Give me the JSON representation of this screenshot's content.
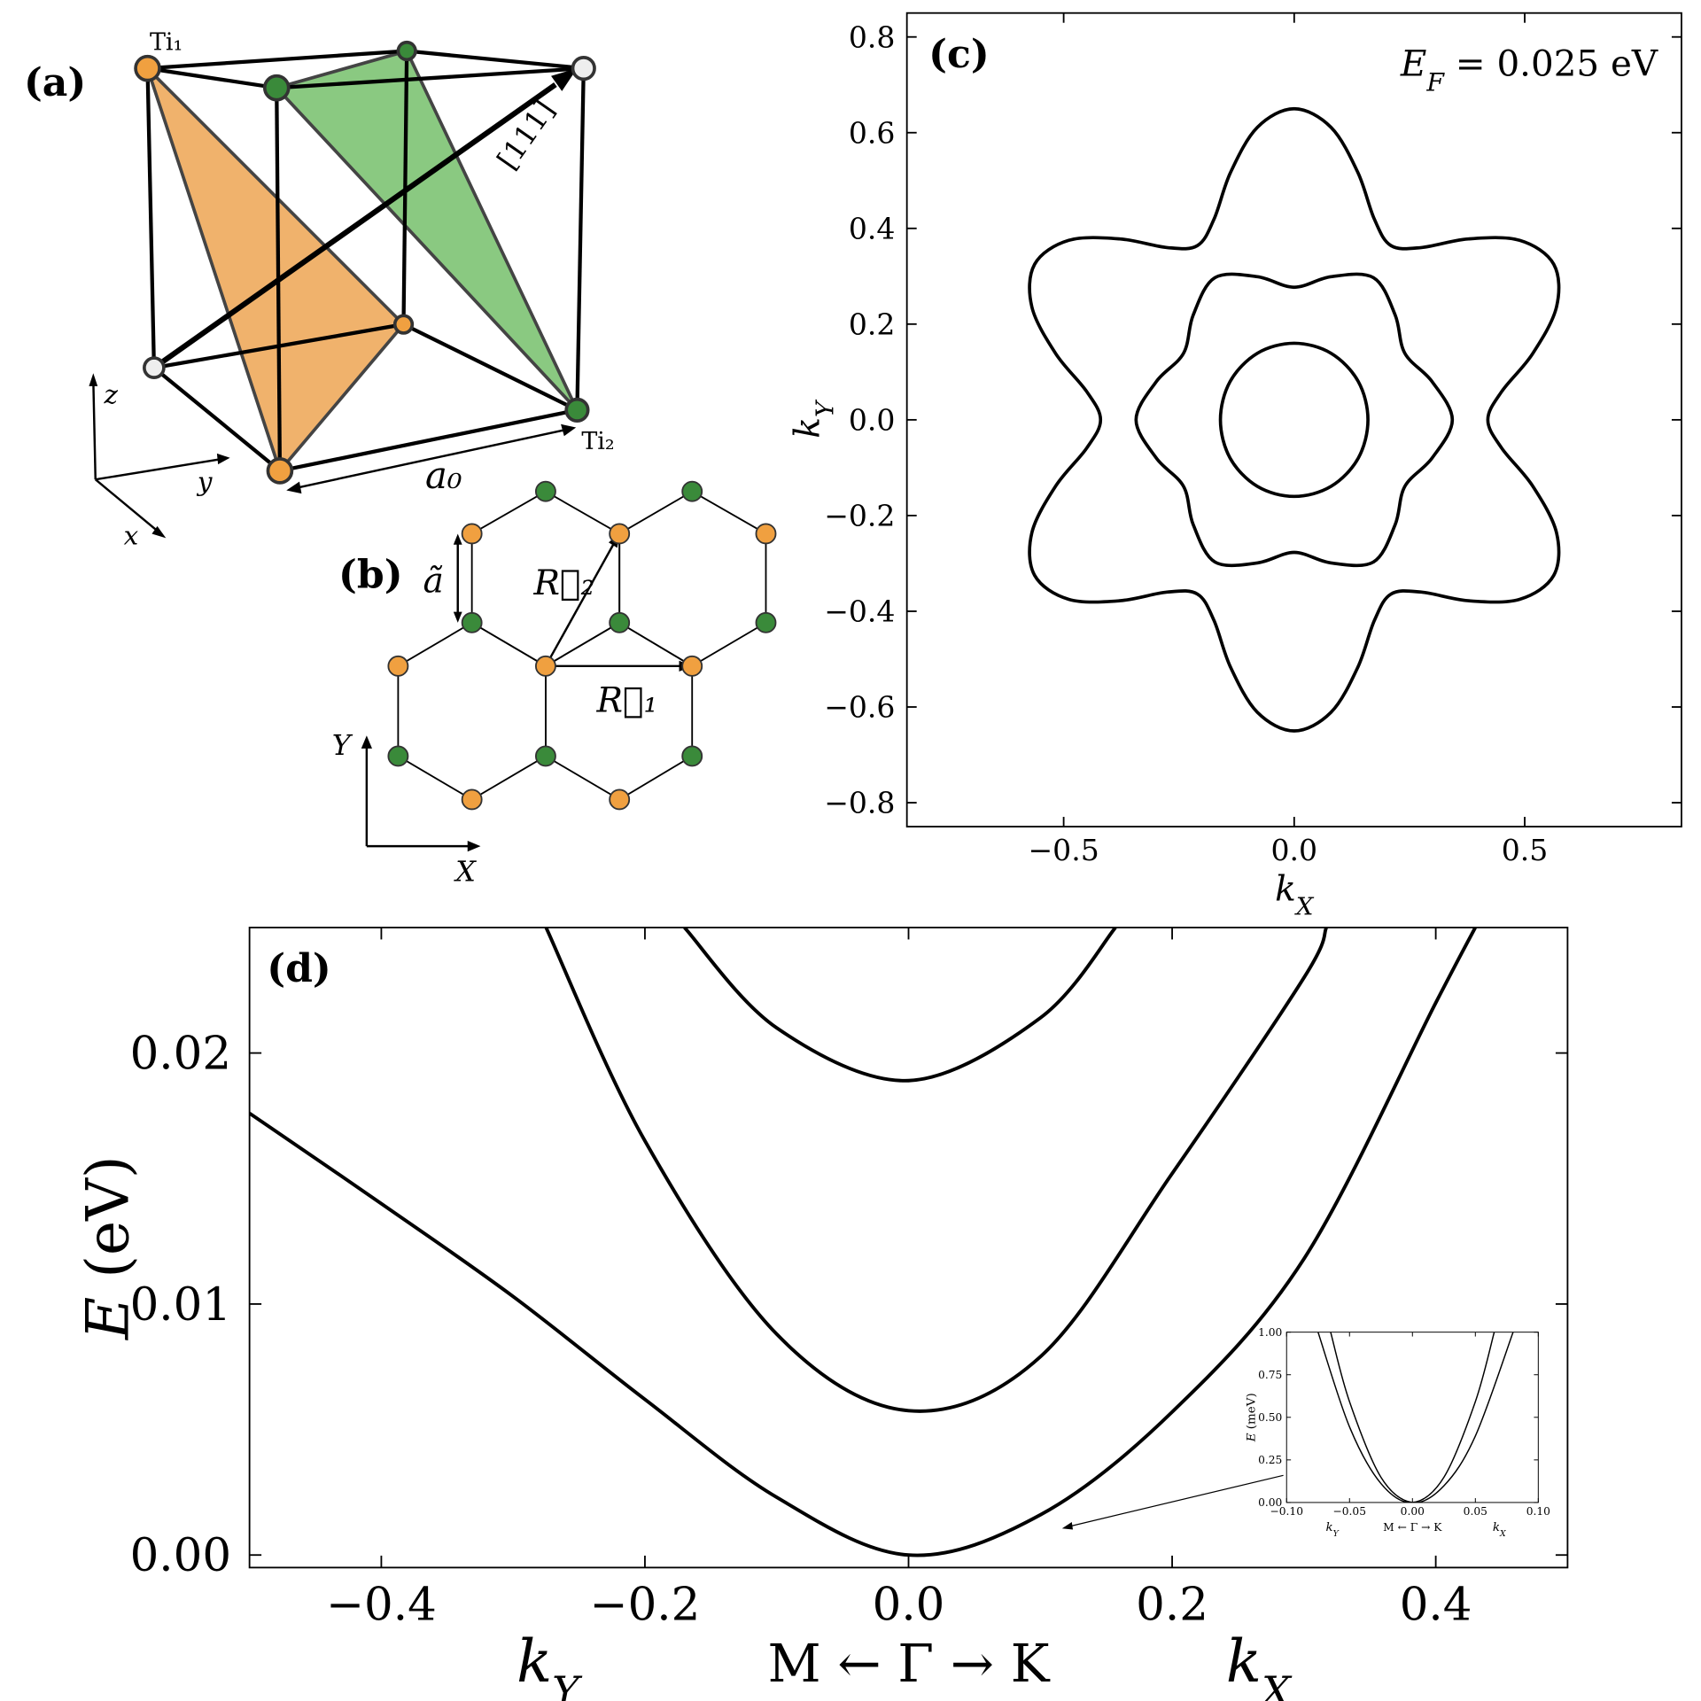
{
  "panels": {
    "a": {
      "label": "(a)",
      "atom_1": "Ti₁",
      "atom_2": "Ti₂",
      "direction": "[111]",
      "lattice_constant": "a₀",
      "axis_x": "x",
      "axis_y": "y",
      "axis_z": "z"
    },
    "b": {
      "label": "(b)",
      "spacing": "ã",
      "vector_1": "R⃗₁",
      "vector_2": "R⃗₂",
      "axis_x": "X",
      "axis_y": "Y"
    }
  },
  "chart_data": [
    {
      "type": "contour",
      "label": "(c)",
      "annotation": [
        "E",
        "F",
        " = 0.025 eV"
      ],
      "xlabel": [
        "k",
        "X"
      ],
      "ylabel": [
        "k",
        "Y"
      ],
      "color": "#000000",
      "xlim": [
        -0.84,
        0.84
      ],
      "ylim": [
        -0.85,
        0.85
      ],
      "xticks": [
        {
          "value": -0.5,
          "label": "−0.5"
        },
        {
          "value": 0,
          "label": "0.0"
        },
        0.5
      ],
      "yticks": [
        {
          "value": -0.8,
          "label": "−0.8"
        },
        {
          "value": -0.6,
          "label": "−0.6"
        },
        {
          "value": -0.4,
          "label": "−0.4"
        },
        {
          "value": -0.2,
          "label": "−0.2"
        },
        {
          "value": 0,
          "label": "0.0"
        },
        0.2,
        0.4,
        0.6,
        0.8
      ],
      "series": [
        {
          "x": [
            0.42,
            0.45,
            0.517,
            0.569,
            0.563,
            0.489,
            0.378,
            0.276,
            0.21,
            0.174,
            0.138,
            0.08,
            0,
            -0.08,
            -0.138,
            -0.174,
            -0.21,
            -0.276,
            -0.378,
            -0.489,
            -0.563,
            -0.569,
            -0.517,
            -0.45,
            -0.42,
            -0.45,
            -0.517,
            -0.569,
            -0.563,
            -0.489,
            -0.378,
            -0.276,
            -0.21,
            -0.174,
            -0.138,
            -0.08,
            0,
            0.08,
            0.138,
            0.174,
            0.21,
            0.276,
            0.378,
            0.489,
            0.563,
            0.569,
            0.517,
            0.45
          ],
          "values": [
            0,
            0.059,
            0.138,
            0.236,
            0.325,
            0.375,
            0.378,
            0.36,
            0.364,
            0.419,
            0.517,
            0.611,
            0.65,
            0.611,
            0.517,
            0.419,
            0.364,
            0.36,
            0.378,
            0.375,
            0.325,
            0.236,
            0.138,
            0.059,
            0,
            -0.059,
            -0.138,
            -0.236,
            -0.325,
            -0.375,
            -0.378,
            -0.36,
            -0.364,
            -0.419,
            -0.517,
            -0.611,
            -0.65,
            -0.611,
            -0.517,
            -0.419,
            -0.364,
            -0.36,
            -0.378,
            -0.375,
            -0.325,
            -0.236,
            -0.138,
            -0.059
          ]
        },
        {
          "x": [
            0.343,
            0.299,
            0.24,
            0.219,
            0.172,
            0.08,
            0,
            -0.08,
            -0.172,
            -0.219,
            -0.24,
            -0.299,
            -0.343,
            -0.299,
            -0.24,
            -0.219,
            -0.172,
            -0.08,
            0,
            0.08,
            0.172,
            0.219,
            0.24,
            0.299
          ],
          "values": [
            0,
            0.08,
            0.139,
            0.219,
            0.297,
            0.299,
            0.277,
            0.299,
            0.297,
            0.219,
            0.139,
            0.08,
            0,
            -0.08,
            -0.139,
            -0.219,
            -0.297,
            -0.299,
            -0.277,
            -0.299,
            -0.297,
            -0.219,
            -0.139,
            -0.08
          ]
        },
        {
          "x": [
            0.16,
            0.139,
            0.08,
            0,
            -0.08,
            -0.139,
            -0.16,
            -0.139,
            -0.08,
            0,
            0.08,
            0.139
          ],
          "values": [
            0,
            0.08,
            0.139,
            0.16,
            0.139,
            0.08,
            0,
            -0.08,
            -0.139,
            -0.16,
            -0.139,
            -0.08
          ]
        }
      ]
    },
    {
      "type": "line",
      "label": "(d)",
      "ylabel": [
        "E",
        " (eV)"
      ],
      "xlabel_left": [
        "k",
        "Y"
      ],
      "xlabel_center": "M ← Γ → K",
      "xlabel_right": [
        "k",
        "X"
      ],
      "color": "#000000",
      "xlim": [
        -0.5,
        0.5
      ],
      "ylim": [
        -0.0005,
        0.025
      ],
      "xticks": [
        {
          "value": -0.4,
          "label": "−0.4"
        },
        {
          "value": -0.2,
          "label": "−0.2"
        },
        {
          "value": 0,
          "label": "0.0"
        },
        0.2,
        0.4
      ],
      "yticks": [
        {
          "value": 0,
          "label": "0.00"
        },
        0.01,
        0.02
      ],
      "series": [
        {
          "x": [
            -0.5,
            -0.4,
            -0.3,
            -0.2,
            -0.1,
            0,
            0.1,
            0.2,
            0.3,
            0.4,
            0.43
          ],
          "values": [
            0.0176,
            0.014,
            0.0103,
            0.0062,
            0.0023,
            0,
            0.0016,
            0.0057,
            0.0118,
            0.022,
            0.025
          ]
        },
        {
          "x": [
            -0.275,
            -0.2,
            -0.1,
            0,
            0.1,
            0.2,
            0.3,
            0.317
          ],
          "values": [
            0.025,
            0.0165,
            0.0088,
            0.00575,
            0.0079,
            0.0152,
            0.023,
            0.025
          ]
        },
        {
          "x": [
            -0.17,
            -0.1,
            0,
            0.1,
            0.157
          ],
          "values": [
            0.025,
            0.021,
            0.0189,
            0.0214,
            0.025
          ]
        }
      ]
    },
    {
      "type": "line",
      "ylabel": [
        "E",
        " (meV)"
      ],
      "xlabel_left": [
        "k",
        "Y"
      ],
      "xlabel_center": "M ← Γ → K",
      "xlabel_right": [
        "k",
        "X"
      ],
      "color": "#000000",
      "xlim": [
        -0.1,
        0.1
      ],
      "ylim": [
        0,
        1
      ],
      "xticks": [
        {
          "value": -0.1,
          "label": "−0.10"
        },
        {
          "value": -0.05,
          "label": "−0.05"
        },
        {
          "value": 0,
          "label": "0.00"
        },
        0.05,
        {
          "value": 0.1,
          "label": "0.10"
        }
      ],
      "yticks": [
        {
          "value": 0,
          "label": "0.00"
        },
        0.25,
        {
          "value": 0.5,
          "label": "0.50"
        },
        0.75,
        {
          "value": 1,
          "label": "1.00"
        }
      ],
      "series": [
        {
          "x": [
            -0.075,
            -0.05,
            -0.025,
            0,
            0.025,
            0.05,
            0.065
          ],
          "values": [
            1,
            0.444,
            0.111,
            0,
            0.148,
            0.592,
            1
          ]
        },
        {
          "x": [
            -0.065,
            -0.05,
            -0.025,
            0,
            0.025,
            0.05,
            0.08
          ],
          "values": [
            1,
            0.592,
            0.148,
            0,
            0.098,
            0.39,
            1
          ]
        }
      ]
    }
  ]
}
